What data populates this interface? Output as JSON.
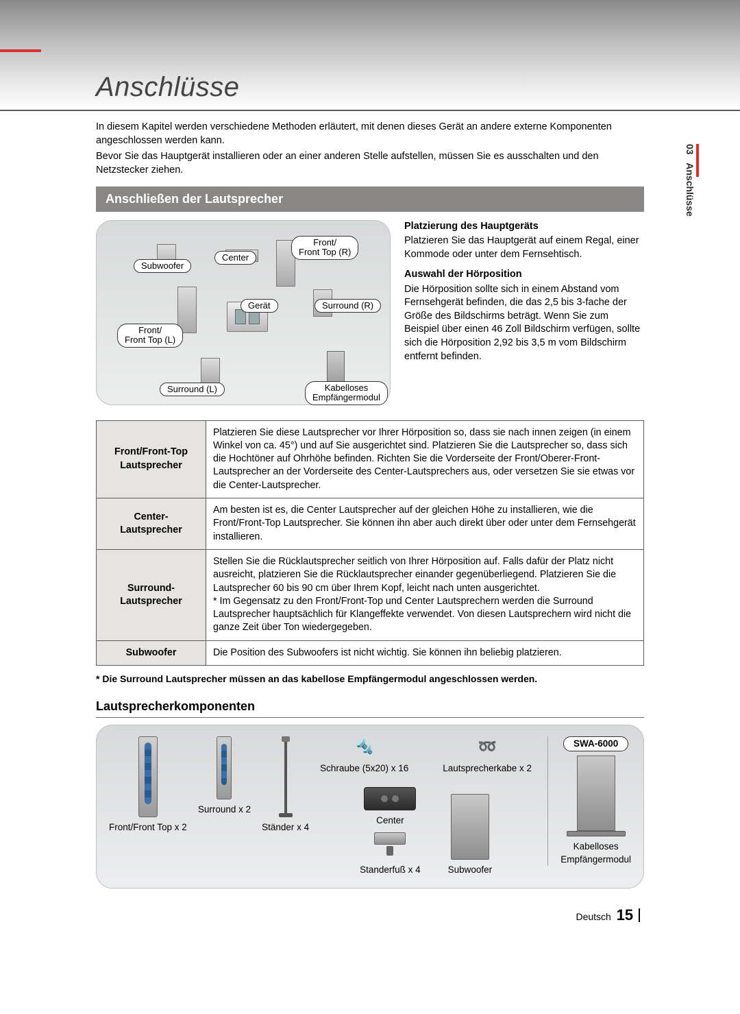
{
  "chapter": {
    "title": "Anschlüsse"
  },
  "sideTab": {
    "num": "03",
    "label": "Anschlüsse"
  },
  "intro": {
    "p1": "In diesem Kapitel werden verschiedene Methoden erläutert, mit denen dieses Gerät an andere externe Komponenten angeschlossen werden kann.",
    "p2": "Bevor Sie das Hauptgerät installieren oder an einer anderen Stelle aufstellen, müssen Sie es ausschalten und den Netzstecker ziehen."
  },
  "sectionBand": "Anschließen der Lautsprecher",
  "diagramLabels": {
    "subwoofer": "Subwoofer",
    "center": "Center",
    "frontR": "Front/\nFront Top (R)",
    "geraet": "Gerät",
    "surroundR": "Surround (R)",
    "frontL": "Front/\nFront Top (L)",
    "surroundL": "Surround (L)",
    "module": "Kabelloses\nEmpfängermodul"
  },
  "placement": {
    "h1": "Platzierung des Hauptgeräts",
    "p1": "Platzieren Sie das Hauptgerät auf einem Regal, einer Kommode oder unter dem Fernsehtisch.",
    "h2": "Auswahl der Hörposition",
    "p2": "Die Hörposition sollte sich in einem Abstand vom Fernsehgerät befinden, die das 2,5 bis 3-fache der Größe des Bildschirms beträgt. Wenn Sie zum Beispiel über einen 46 Zoll Bildschirm verfügen, sollte sich die Hörposition 2,92 bis 3,5 m vom Bildschirm entfernt befinden."
  },
  "table": {
    "rows": [
      {
        "head": "Front/Front-Top Lautsprecher",
        "body": "Platzieren Sie diese Lautsprecher vor Ihrer Hörposition so, dass sie nach innen zeigen (in einem Winkel von ca. 45°) und auf Sie ausgerichtet sind. Platzieren Sie die Lautsprecher so, dass sich die Hochtöner auf Ohrhöhe befinden. Richten Sie die Vorderseite der Front/Oberer-Front-Lautsprecher an der Vorderseite des Center-Lautsprechers aus, oder versetzen Sie sie etwas vor die Center-Lautsprecher."
      },
      {
        "head": "Center-Lautsprecher",
        "body": "Am besten ist es, die Center Lautsprecher auf der gleichen Höhe zu installieren, wie die Front/Front-Top Lautsprecher. Sie können ihn aber auch direkt über oder unter dem Fernsehgerät installieren."
      },
      {
        "head": "Surround-Lautsprecher",
        "body": "Stellen Sie die Rücklautsprecher seitlich von Ihrer Hörposition auf. Falls dafür der Platz nicht ausreicht, platzieren Sie die Rücklautsprecher einander gegenüberliegend. Platzieren Sie die Lautsprecher 60 bis 90 cm über Ihrem Kopf, leicht nach unten ausgerichtet.\n*  Im Gegensatz zu den Front/Front-Top und Center Lautsprechern werden die Surround Lautsprecher hauptsächlich für Klangeffekte verwendet. Von diesen Lautsprechern wird nicht die ganze Zeit über Ton wiedergegeben."
      },
      {
        "head": "Subwoofer",
        "body": "Die Position des Subwoofers ist nicht wichtig. Sie können ihn beliebig platzieren."
      }
    ],
    "note": "* Die Surround Lautsprecher müssen an das kabellose Empfängermodul angeschlossen werden."
  },
  "componentsHead": "Lautsprecherkomponenten",
  "components": {
    "front": "Front/Front Top x 2",
    "surround": "Surround x 2",
    "stand": "Ständer x 4",
    "screw": "Schraube (5x20) x 16",
    "cable": "Lautsprecherkabe x 2",
    "center": "Center",
    "standfoot": "Standerfuß x 4",
    "sub": "Subwoofer",
    "swa": "SWA-6000",
    "module": "Kabelloses\nEmpfängermodul"
  },
  "footer": {
    "lang": "Deutsch",
    "page": "15"
  }
}
